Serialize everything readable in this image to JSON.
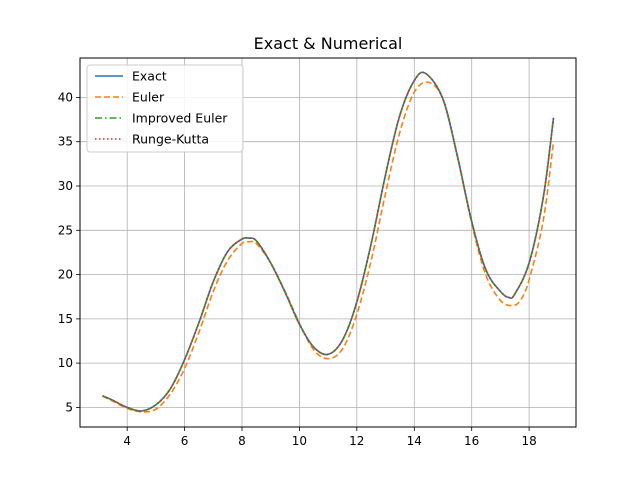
{
  "chart_data": {
    "type": "line",
    "title": "Exact & Numerical",
    "xlabel": "",
    "ylabel": "",
    "xlim": [
      2.355,
      19.635
    ],
    "ylim": [
      2.79,
      44.45
    ],
    "xticks": [
      4,
      6,
      8,
      10,
      12,
      14,
      16,
      18
    ],
    "yticks": [
      5,
      10,
      15,
      20,
      25,
      30,
      35,
      40
    ],
    "grid": true,
    "legend_position": "top-left",
    "series": [
      {
        "name": "Exact",
        "color": "#1f77b4",
        "dash": "solid",
        "x": [
          3.14,
          3.5,
          4.0,
          4.5,
          5.0,
          5.5,
          6.0,
          6.5,
          7.0,
          7.5,
          8.0,
          8.25,
          8.5,
          9.0,
          9.5,
          10.0,
          10.5,
          11.0,
          11.5,
          12.0,
          12.5,
          13.0,
          13.5,
          14.0,
          14.4,
          15.0,
          15.5,
          16.0,
          16.5,
          17.0,
          17.3,
          17.5,
          18.0,
          18.5,
          18.85
        ],
        "y": [
          6.3,
          5.8,
          5.0,
          4.6,
          5.3,
          7.1,
          10.4,
          14.6,
          19.2,
          22.6,
          24.0,
          24.1,
          23.8,
          21.3,
          18.0,
          14.4,
          11.8,
          11.0,
          12.6,
          16.9,
          23.5,
          31.3,
          38.0,
          41.9,
          42.7,
          39.8,
          33.4,
          26.0,
          20.5,
          18.1,
          17.4,
          17.8,
          21.3,
          28.8,
          37.7
        ]
      },
      {
        "name": "Euler",
        "color": "#ff7f0e",
        "dash": "dashed",
        "x": [
          3.14,
          3.5,
          4.0,
          4.5,
          5.0,
          5.5,
          6.0,
          6.5,
          7.0,
          7.5,
          8.0,
          8.25,
          8.5,
          9.0,
          9.5,
          10.0,
          10.5,
          11.0,
          11.5,
          12.0,
          12.5,
          13.0,
          13.5,
          14.0,
          14.5,
          15.0,
          15.5,
          16.0,
          16.5,
          17.0,
          17.4,
          17.7,
          18.0,
          18.5,
          18.85
        ],
        "y": [
          6.3,
          5.7,
          4.9,
          4.5,
          4.8,
          6.5,
          9.4,
          13.5,
          18.1,
          21.6,
          23.5,
          23.7,
          23.5,
          21.3,
          18.1,
          14.5,
          11.5,
          10.5,
          11.6,
          15.5,
          21.6,
          29.2,
          36.1,
          40.6,
          41.7,
          39.8,
          33.5,
          25.8,
          19.9,
          17.1,
          16.5,
          17.1,
          19.4,
          26.2,
          35.0
        ]
      },
      {
        "name": "Improved Euler",
        "color": "#2ca02c",
        "dash": "dashdot",
        "x": [
          3.14,
          3.5,
          4.0,
          4.5,
          5.0,
          5.5,
          6.0,
          6.5,
          7.0,
          7.5,
          8.0,
          8.25,
          8.5,
          9.0,
          9.5,
          10.0,
          10.5,
          11.0,
          11.5,
          12.0,
          12.5,
          13.0,
          13.5,
          14.0,
          14.4,
          15.0,
          15.5,
          16.0,
          16.5,
          17.0,
          17.3,
          17.5,
          18.0,
          18.5,
          18.85
        ],
        "y": [
          6.3,
          5.8,
          5.0,
          4.6,
          5.3,
          7.1,
          10.4,
          14.6,
          19.2,
          22.6,
          24.0,
          24.1,
          23.8,
          21.3,
          18.0,
          14.4,
          11.8,
          11.0,
          12.6,
          16.9,
          23.5,
          31.3,
          38.0,
          41.9,
          42.7,
          39.8,
          33.4,
          26.0,
          20.5,
          18.1,
          17.4,
          17.8,
          21.3,
          28.8,
          37.7
        ]
      },
      {
        "name": "Runge-Kutta",
        "color": "#d62728",
        "dash": "dotted",
        "x": [
          3.14,
          3.5,
          4.0,
          4.5,
          5.0,
          5.5,
          6.0,
          6.5,
          7.0,
          7.5,
          8.0,
          8.25,
          8.5,
          9.0,
          9.5,
          10.0,
          10.5,
          11.0,
          11.5,
          12.0,
          12.5,
          13.0,
          13.5,
          14.0,
          14.4,
          15.0,
          15.5,
          16.0,
          16.5,
          17.0,
          17.3,
          17.5,
          18.0,
          18.5,
          18.85
        ],
        "y": [
          6.3,
          5.8,
          5.0,
          4.6,
          5.3,
          7.1,
          10.4,
          14.6,
          19.2,
          22.6,
          24.0,
          24.1,
          23.8,
          21.3,
          18.0,
          14.4,
          11.8,
          11.0,
          12.6,
          16.9,
          23.5,
          31.3,
          38.0,
          41.9,
          42.7,
          39.8,
          33.4,
          26.0,
          20.5,
          18.1,
          17.4,
          17.8,
          21.3,
          28.8,
          37.7
        ]
      }
    ]
  }
}
